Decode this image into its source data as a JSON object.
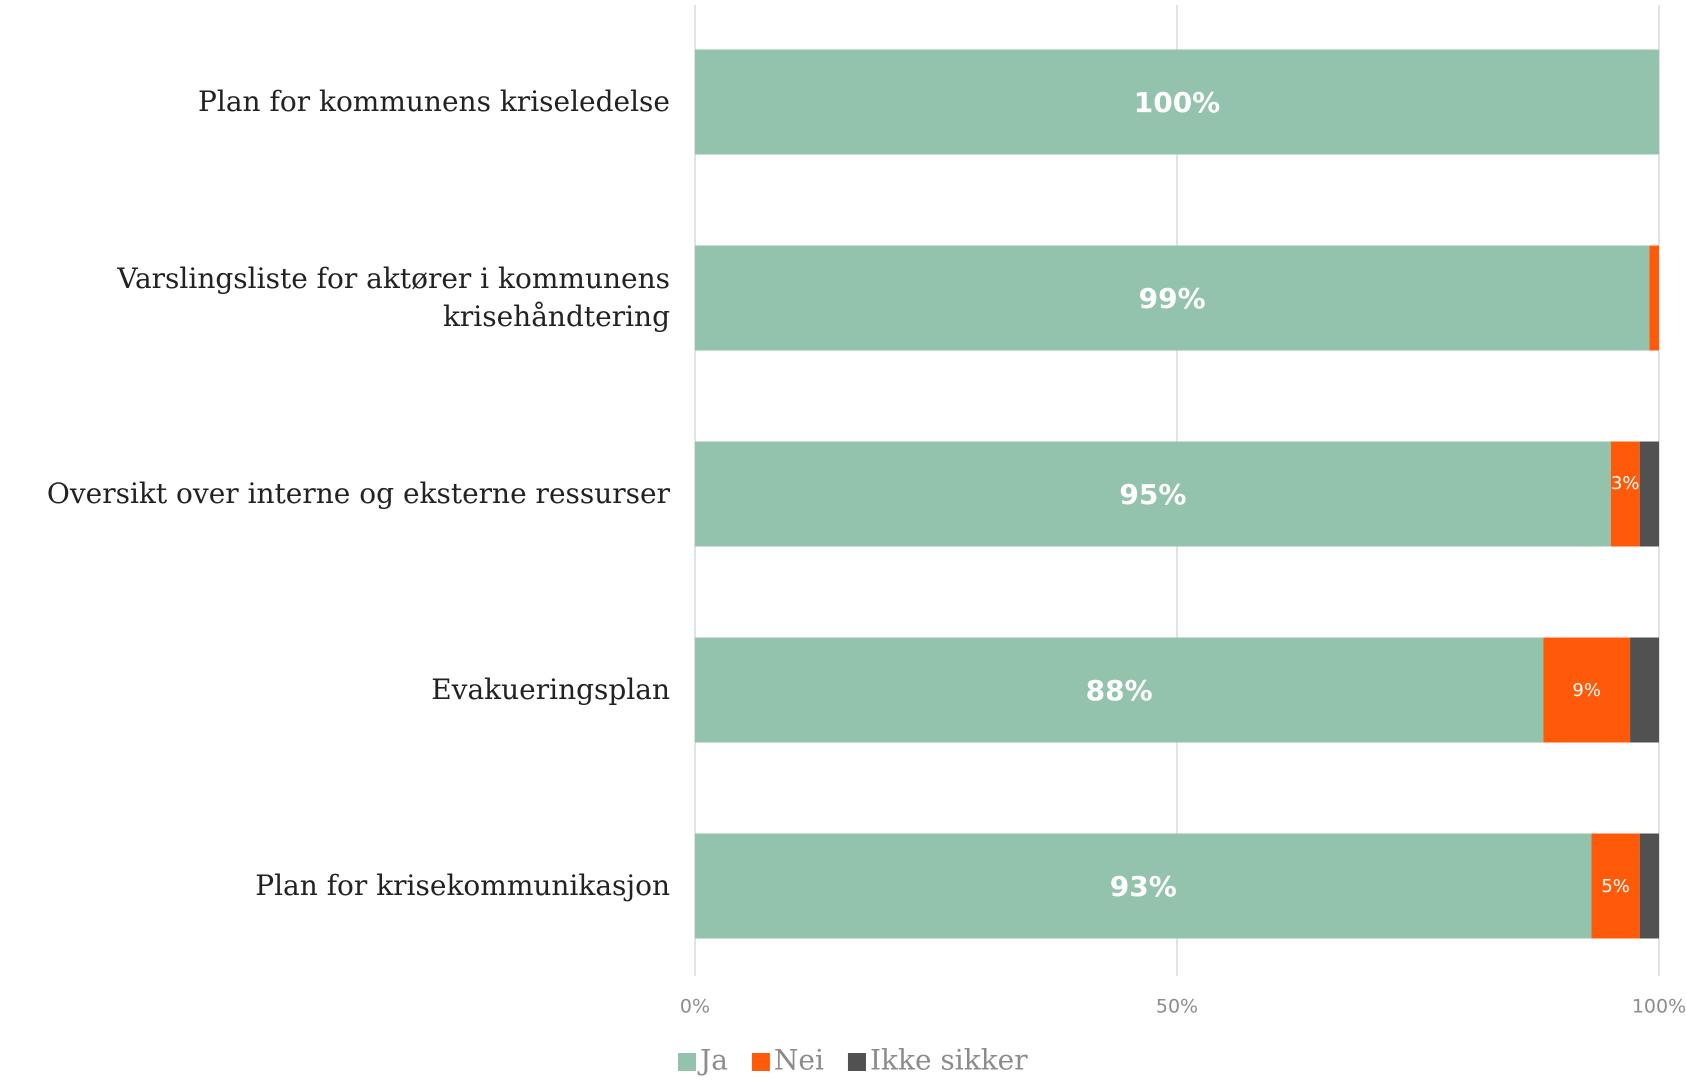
{
  "chart_data": {
    "type": "stacked-bar-horizontal",
    "categories": [
      "Plan for kommunens kriseledelse",
      "Varslingsliste for aktører i kommunens krisehåndtering",
      "Oversikt over interne og eksterne ressurser",
      "Evakueringsplan",
      "Plan for krisekommunikasjon"
    ],
    "series": [
      {
        "name": "Ja",
        "color": "#93c2ad",
        "values": [
          100,
          99,
          95,
          88,
          93
        ],
        "value_labels": [
          "100%",
          "99%",
          "95%",
          "88%",
          "93%"
        ]
      },
      {
        "name": "Nei",
        "color": "#ff5a0a",
        "values": [
          0,
          1,
          3,
          9,
          5
        ],
        "value_labels": [
          null,
          null,
          "3%",
          "9%",
          "5%"
        ]
      },
      {
        "name": "Ikke sikker",
        "color": "#515151",
        "values": [
          0,
          0,
          2,
          3,
          2
        ]
      }
    ],
    "xlim": [
      0,
      100
    ],
    "xticks": [
      {
        "value": 0,
        "label": "0%"
      },
      {
        "value": 50,
        "label": "50%"
      },
      {
        "value": 100,
        "label": "100%"
      }
    ],
    "grid": true,
    "legend": "bottom"
  }
}
